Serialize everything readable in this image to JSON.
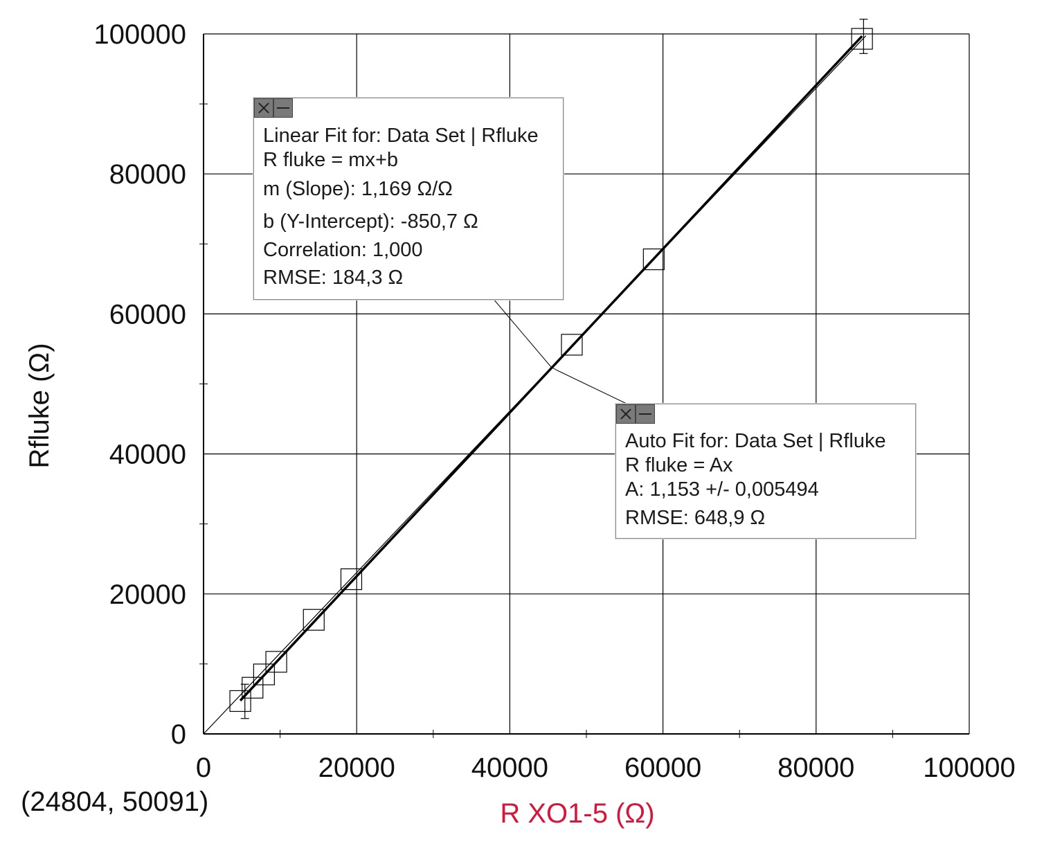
{
  "chart_data": {
    "type": "scatter",
    "xlabel": "R XO1-5 (Ω)",
    "ylabel": "Rfluke (Ω)",
    "xlim": [
      0,
      100000
    ],
    "ylim": [
      0,
      100000
    ],
    "x_ticks": [
      "0",
      "20000",
      "40000",
      "60000",
      "80000",
      "100000"
    ],
    "y_ticks": [
      "0",
      "20000",
      "40000",
      "60000",
      "80000",
      "100000"
    ],
    "grid": true,
    "series": [
      {
        "points": [
          {
            "x": 4800,
            "y": 4700
          },
          {
            "x": 6400,
            "y": 6600
          },
          {
            "x": 7900,
            "y": 8500
          },
          {
            "x": 9500,
            "y": 10300
          },
          {
            "x": 14400,
            "y": 16300
          },
          {
            "x": 19300,
            "y": 22100
          },
          {
            "x": 48100,
            "y": 55600
          },
          {
            "x": 58800,
            "y": 67800
          },
          {
            "x": 86000,
            "y": 99300
          }
        ]
      }
    ],
    "fits": [
      {
        "type": "linear",
        "m": 1.169,
        "b": -850.7,
        "x_range": [
          4800,
          86000
        ]
      },
      {
        "type": "proportional",
        "A": 1.153,
        "x_range": [
          0,
          86500
        ]
      }
    ],
    "error_bars": [
      {
        "x": 5400,
        "y_low": 2200,
        "y_high": 7100
      },
      {
        "x": 86200,
        "y_low": 97200,
        "y_high": 102100
      }
    ]
  },
  "cursor_readout": "(24804, 50091)",
  "linear_fit_box": {
    "title": "Linear Fit for: Data Set | Rfluke",
    "equation": "R fluke = mx+b",
    "slope": "m (Slope): 1,169 Ω/Ω",
    "intercept": "b (Y-Intercept): -850,7 Ω",
    "correlation": "Correlation: 1,000",
    "rmse": "RMSE: 184,3 Ω"
  },
  "auto_fit_box": {
    "title": "Auto Fit for: Data Set | Rfluke",
    "equation": "R fluke = Ax",
    "param": "A: 1,153 +/- 0,005494",
    "rmse": "RMSE: 648,9 Ω"
  },
  "colors": {
    "x_axis_label": "#d8143a",
    "y_axis_label": "#111111",
    "grid": "#000000",
    "data": "#000000"
  }
}
